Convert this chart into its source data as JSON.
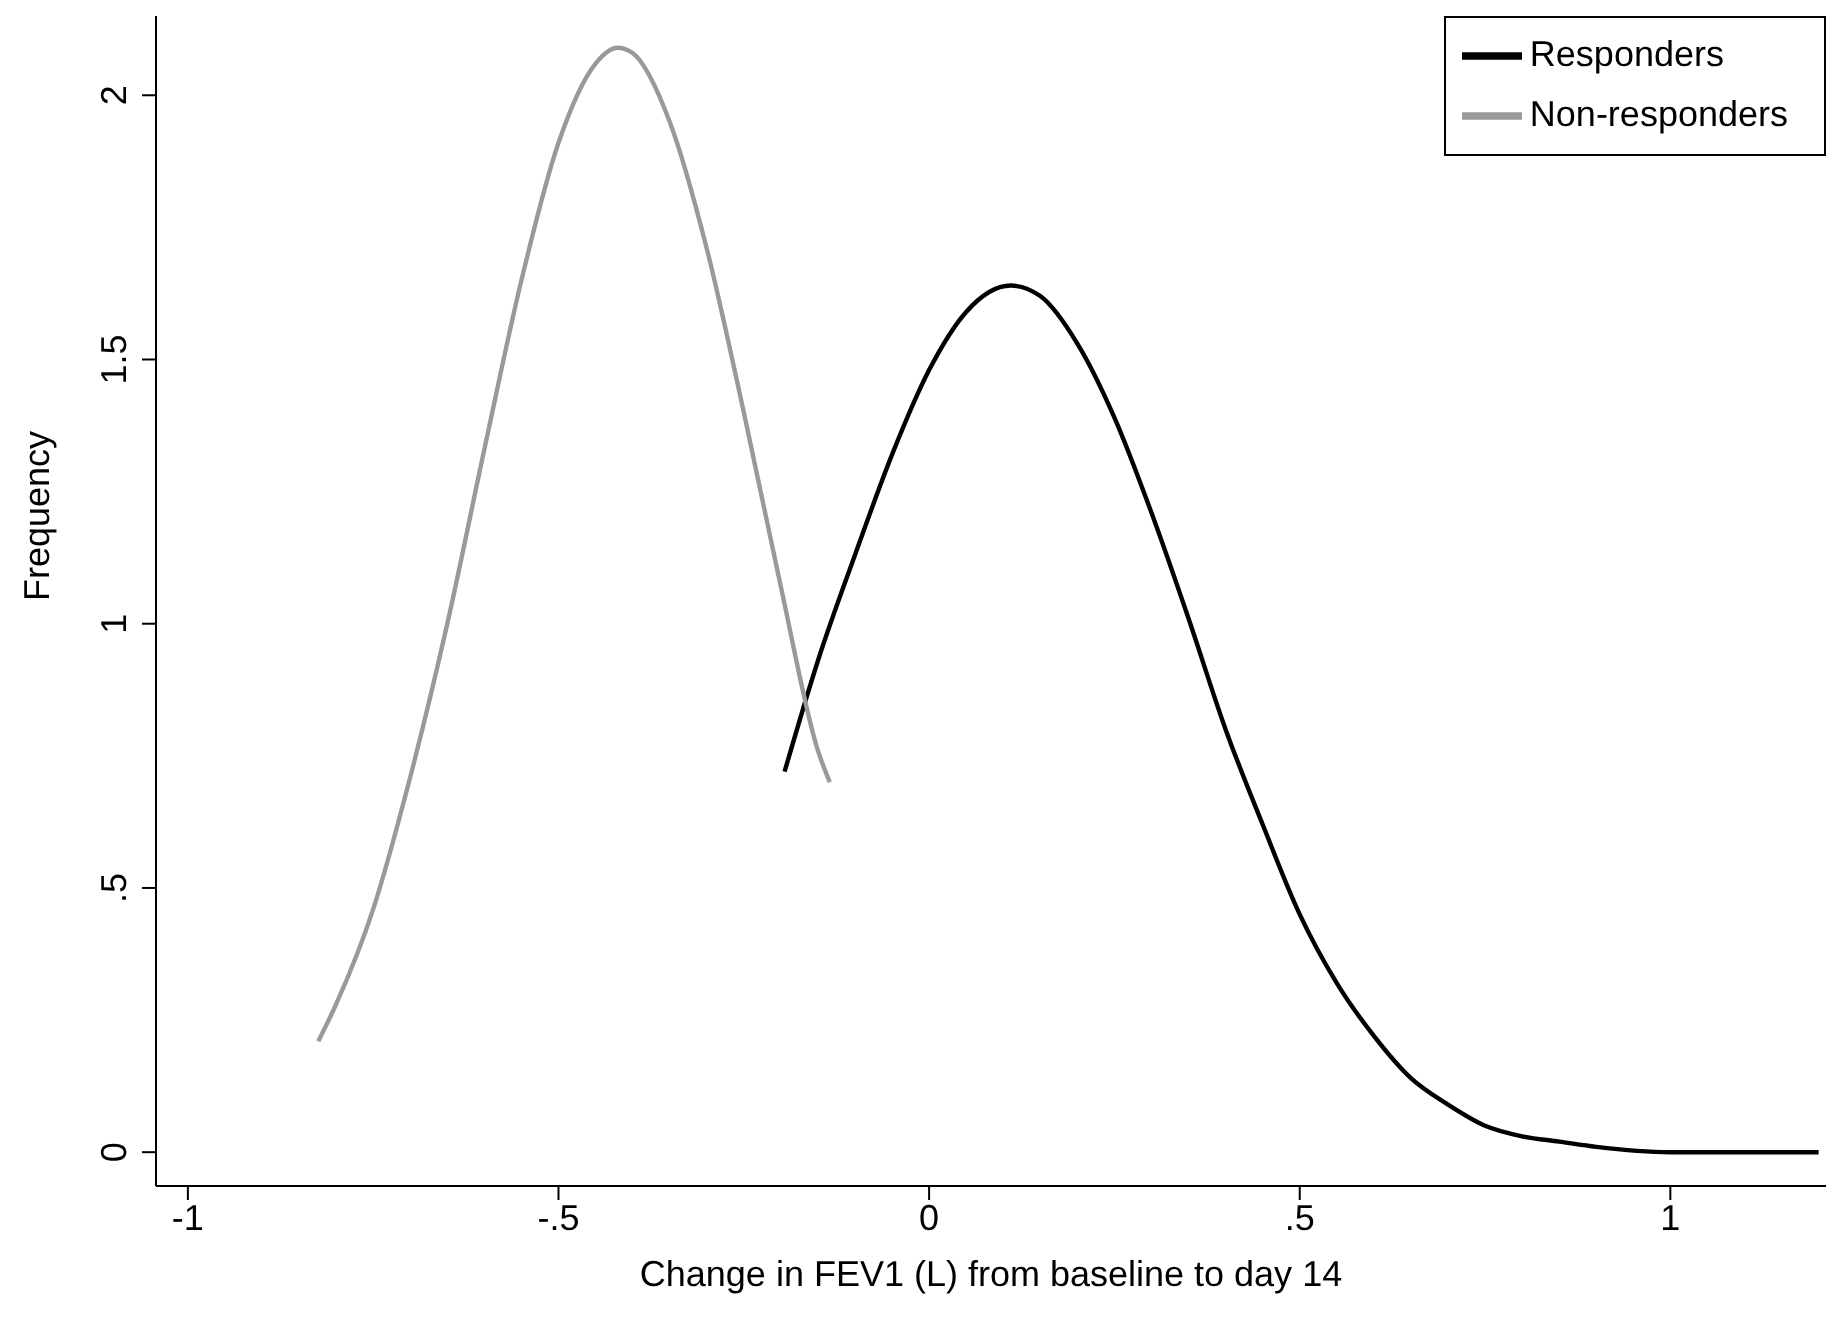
{
  "chart_data": {
    "type": "line",
    "xlabel": "Change in FEV1 (L) from baseline to day 14",
    "ylabel": "Frequency",
    "xlim": [
      -1.043,
      1.21
    ],
    "ylim": [
      -0.064,
      2.15
    ],
    "xticks": [
      {
        "value": -1,
        "label": "-1"
      },
      {
        "value": -0.5,
        "label": "-.5"
      },
      0,
      {
        "value": 0.5,
        "label": ".5"
      },
      1
    ],
    "yticks": [
      0,
      {
        "value": 0.5,
        "label": ".5"
      },
      1,
      1.5,
      2
    ],
    "legend": "top right",
    "marker": "none",
    "line_style": "solid",
    "series": [
      {
        "name": "Responders",
        "color": "#000000",
        "x": [
          -0.195,
          -0.15,
          -0.1,
          -0.05,
          0,
          0.05,
          0.11,
          0.15,
          0.2,
          0.25,
          0.3,
          0.35,
          0.4,
          0.45,
          0.5,
          0.55,
          0.6,
          0.65,
          0.7,
          0.75,
          0.8,
          0.85,
          0.9,
          1,
          1.1,
          1.2
        ],
        "values": [
          0.72,
          0.93,
          1.13,
          1.32,
          1.48,
          1.59,
          1.64,
          1.62,
          1.53,
          1.39,
          1.21,
          1.01,
          0.8,
          0.62,
          0.45,
          0.32,
          0.22,
          0.14,
          0.09,
          0.05,
          0.03,
          0.02,
          0.01,
          0,
          0,
          0
        ]
      },
      {
        "name": "Non-responders",
        "color": "#999999",
        "x": [
          -0.824,
          -0.8,
          -0.75,
          -0.7,
          -0.65,
          -0.6,
          -0.55,
          -0.5,
          -0.45,
          -0.42,
          -0.4,
          -0.35,
          -0.3,
          -0.25,
          -0.2,
          -0.15,
          -0.134
        ],
        "values": [
          0.21,
          0.28,
          0.46,
          0.71,
          1.0,
          1.33,
          1.65,
          1.91,
          2.06,
          2.09,
          2.08,
          1.95,
          1.71,
          1.4,
          1.07,
          0.76,
          0.7
        ]
      }
    ]
  }
}
